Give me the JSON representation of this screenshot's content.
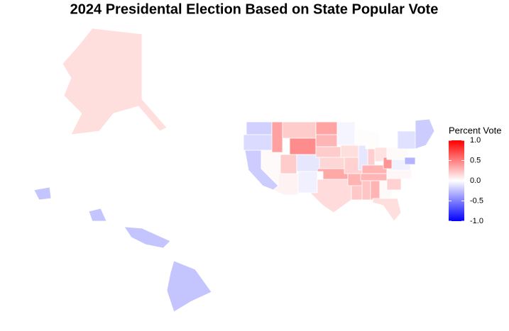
{
  "chart_data": {
    "type": "choropleth",
    "title": "2024 Presidental Election Based on State Popular Vote",
    "legend_title": "Percent Vote",
    "clim": [
      -1,
      1
    ],
    "colors": {
      "low": "#0000ff",
      "mid": "#ffffff",
      "high": "#ff0000"
    },
    "ticks": [
      {
        "value": 1,
        "label": "1.0"
      },
      {
        "value": 0.5,
        "label": "0.5"
      },
      {
        "value": 0,
        "label": "0.0"
      },
      {
        "value": -0.5,
        "label": "-0.5"
      },
      {
        "value": -1,
        "label": "-1.0"
      }
    ],
    "values": [
      0.13,
      -0.23,
      -0.23,
      -0.23,
      -0.23,
      -0.18,
      -0.14,
      -0.2,
      0.02,
      0.37,
      0.2,
      0.45,
      0.2,
      0.05,
      -0.1,
      -0.06,
      0.36,
      0.29,
      0.2,
      0.16,
      0.34,
      0.14,
      -0.04,
      0.13,
      0.18,
      0.3,
      0.22,
      0.01,
      -0.1,
      0.01,
      0.19,
      0.11,
      0.3,
      0.29,
      0.23,
      0.3,
      0.02,
      0.13,
      0.18,
      0.03,
      -0.06,
      0.41,
      0.02,
      -0.12,
      -0.2,
      -0.29
    ]
  }
}
